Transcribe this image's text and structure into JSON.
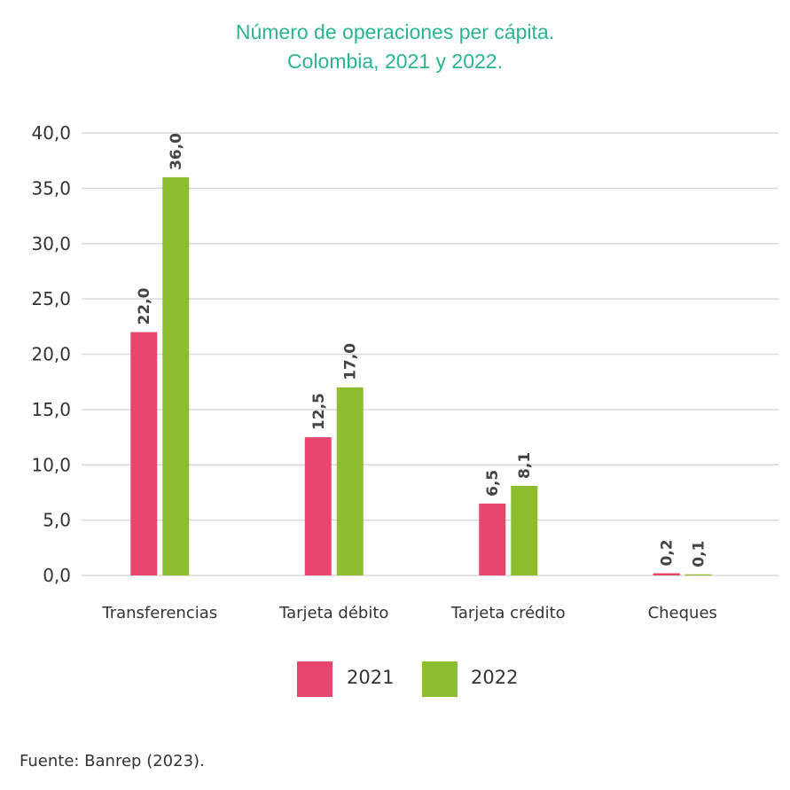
{
  "title_line1": "Número de operaciones per cápita.",
  "title_line2": "Colombia, 2021 y 2022.",
  "source": "Fuente: Banrep (2023).",
  "colors": {
    "2021": "#e8466f",
    "2022": "#8dbd2f",
    "title": "#2bb58c"
  },
  "chart_data": {
    "type": "bar",
    "title": "Número de operaciones per cápita. Colombia, 2021 y 2022.",
    "categories": [
      "Transferencias",
      "Tarjeta débito",
      "Tarjeta crédito",
      "Cheques"
    ],
    "series": [
      {
        "name": "2021",
        "values": [
          22.0,
          12.5,
          6.5,
          0.2
        ],
        "labels": [
          "22,0",
          "12,5",
          "6,5",
          "0,2"
        ],
        "color": "#e8466f"
      },
      {
        "name": "2022",
        "values": [
          36.0,
          17.0,
          8.1,
          0.1
        ],
        "labels": [
          "36,0",
          "17,0",
          "8,1",
          "0,1"
        ],
        "color": "#8dbd2f"
      }
    ],
    "ylim": [
      0,
      40
    ],
    "yticks": [
      0,
      5,
      10,
      15,
      20,
      25,
      30,
      35,
      40
    ],
    "ytick_labels": [
      "0,0",
      "5,0",
      "10,0",
      "15,0",
      "20,0",
      "25,0",
      "30,0",
      "35,0",
      "40,0"
    ],
    "grid": true,
    "legend_position": "bottom"
  }
}
